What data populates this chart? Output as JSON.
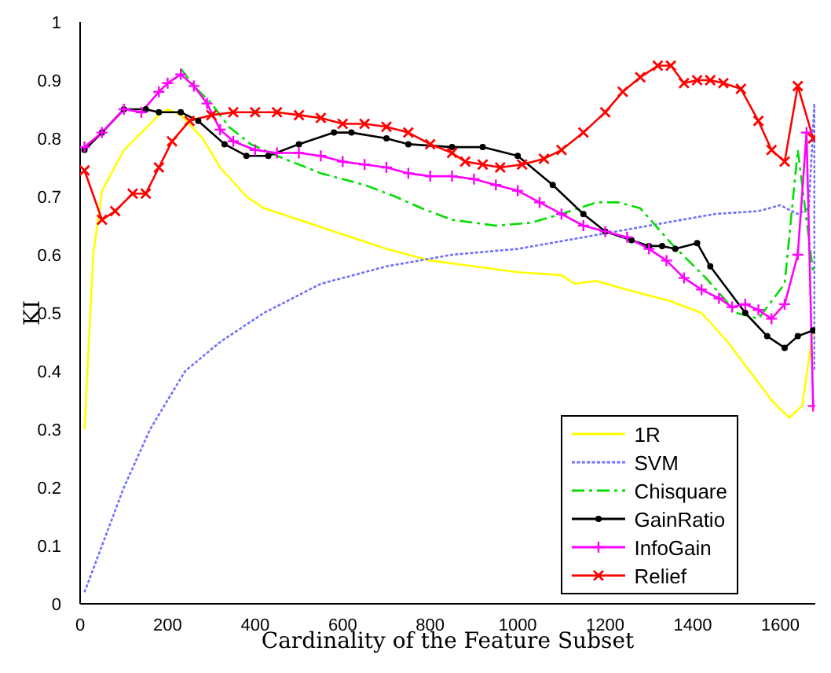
{
  "chart_data": {
    "type": "line",
    "xlabel": "Cardinality of the Feature Subset",
    "ylabel": "KI",
    "xlim": [
      0,
      1680
    ],
    "xticks": [
      0,
      200,
      400,
      600,
      800,
      1000,
      1200,
      1400,
      1600
    ],
    "ylim": [
      0,
      1
    ],
    "yticks": [
      0,
      0.1,
      0.2,
      0.3,
      0.4,
      0.5,
      0.6,
      0.7,
      0.8,
      0.9,
      1
    ],
    "legend": "bottom right",
    "grid": false,
    "series": [
      {
        "name": "1R",
        "color": "#ffff00",
        "marker": "none",
        "line_style": "solid",
        "x": [
          10,
          30,
          50,
          100,
          180,
          200,
          230,
          280,
          320,
          380,
          420,
          500,
          580,
          620,
          700,
          750,
          800,
          900,
          1000,
          1100,
          1130,
          1180,
          1250,
          1350,
          1420,
          1480,
          1530,
          1580,
          1620,
          1650,
          1675
        ],
        "values": [
          0.3,
          0.6,
          0.71,
          0.78,
          0.84,
          0.85,
          0.84,
          0.8,
          0.75,
          0.7,
          0.68,
          0.66,
          0.64,
          0.63,
          0.61,
          0.6,
          0.59,
          0.58,
          0.57,
          0.565,
          0.55,
          0.555,
          0.54,
          0.52,
          0.5,
          0.45,
          0.4,
          0.35,
          0.32,
          0.34,
          0.47
        ]
      },
      {
        "name": "SVM",
        "color": "#7070ff",
        "marker": "none",
        "line_style": "dotted",
        "x": [
          10,
          50,
          100,
          160,
          240,
          320,
          420,
          550,
          700,
          850,
          1000,
          1150,
          1300,
          1450,
          1550,
          1600,
          1640,
          1665,
          1678,
          1678
        ],
        "values": [
          0.02,
          0.1,
          0.2,
          0.3,
          0.4,
          0.45,
          0.5,
          0.55,
          0.58,
          0.6,
          0.61,
          0.63,
          0.65,
          0.67,
          0.675,
          0.685,
          0.67,
          0.68,
          0.86,
          0.4
        ]
      },
      {
        "name": "Chisquare",
        "color": "#00dd00",
        "marker": "none",
        "line_style": "dashed",
        "x": [
          230,
          260,
          300,
          340,
          390,
          450,
          550,
          650,
          720,
          780,
          850,
          950,
          1030,
          1100,
          1180,
          1230,
          1280,
          1350,
          1430,
          1500,
          1550,
          1610,
          1640,
          1675
        ],
        "values": [
          0.92,
          0.89,
          0.86,
          0.82,
          0.79,
          0.77,
          0.74,
          0.72,
          0.7,
          0.68,
          0.66,
          0.65,
          0.655,
          0.67,
          0.69,
          0.69,
          0.68,
          0.62,
          0.56,
          0.5,
          0.49,
          0.55,
          0.78,
          0.57
        ]
      },
      {
        "name": "GainRatio",
        "color": "#000000",
        "marker": "circle",
        "line_style": "solid",
        "x": [
          10,
          50,
          100,
          150,
          180,
          230,
          270,
          330,
          380,
          430,
          500,
          580,
          620,
          700,
          750,
          850,
          920,
          1000,
          1080,
          1150,
          1200,
          1260,
          1300,
          1330,
          1360,
          1410,
          1440,
          1520,
          1570,
          1610,
          1640,
          1675
        ],
        "values": [
          0.78,
          0.81,
          0.85,
          0.85,
          0.845,
          0.845,
          0.83,
          0.79,
          0.77,
          0.77,
          0.79,
          0.81,
          0.81,
          0.8,
          0.79,
          0.785,
          0.785,
          0.77,
          0.72,
          0.67,
          0.64,
          0.625,
          0.615,
          0.615,
          0.61,
          0.62,
          0.58,
          0.5,
          0.46,
          0.44,
          0.46,
          0.47
        ]
      },
      {
        "name": "InfoGain",
        "color": "#ff00ff",
        "marker": "cross",
        "line_style": "solid",
        "x": [
          10,
          50,
          100,
          140,
          180,
          200,
          230,
          260,
          290,
          320,
          350,
          400,
          450,
          500,
          550,
          600,
          650,
          700,
          750,
          800,
          850,
          900,
          950,
          1000,
          1050,
          1100,
          1150,
          1200,
          1250,
          1300,
          1340,
          1380,
          1420,
          1460,
          1490,
          1520,
          1550,
          1580,
          1610,
          1640,
          1660,
          1675
        ],
        "values": [
          0.785,
          0.81,
          0.85,
          0.845,
          0.88,
          0.895,
          0.91,
          0.89,
          0.86,
          0.815,
          0.795,
          0.78,
          0.775,
          0.775,
          0.77,
          0.76,
          0.755,
          0.75,
          0.74,
          0.735,
          0.735,
          0.73,
          0.72,
          0.71,
          0.69,
          0.67,
          0.65,
          0.64,
          0.63,
          0.61,
          0.59,
          0.56,
          0.54,
          0.525,
          0.51,
          0.515,
          0.505,
          0.49,
          0.515,
          0.6,
          0.81,
          0.34
        ]
      },
      {
        "name": "Relief",
        "color": "#ff0000",
        "marker": "x",
        "line_style": "solid",
        "x": [
          10,
          50,
          80,
          120,
          150,
          180,
          210,
          250,
          300,
          350,
          400,
          450,
          500,
          550,
          600,
          650,
          700,
          750,
          800,
          850,
          880,
          920,
          960,
          1010,
          1060,
          1100,
          1150,
          1200,
          1240,
          1280,
          1320,
          1350,
          1380,
          1410,
          1440,
          1470,
          1510,
          1550,
          1580,
          1610,
          1640,
          1675
        ],
        "values": [
          0.745,
          0.66,
          0.675,
          0.705,
          0.705,
          0.75,
          0.795,
          0.83,
          0.84,
          0.845,
          0.845,
          0.845,
          0.84,
          0.835,
          0.825,
          0.825,
          0.82,
          0.81,
          0.79,
          0.775,
          0.76,
          0.755,
          0.75,
          0.755,
          0.765,
          0.78,
          0.81,
          0.845,
          0.88,
          0.905,
          0.925,
          0.925,
          0.895,
          0.9,
          0.9,
          0.895,
          0.885,
          0.83,
          0.78,
          0.76,
          0.89,
          0.8
        ]
      }
    ]
  }
}
